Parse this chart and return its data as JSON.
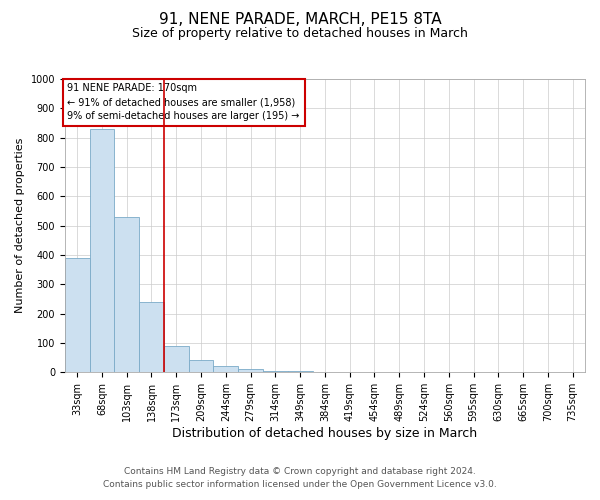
{
  "title": "91, NENE PARADE, MARCH, PE15 8TA",
  "subtitle": "Size of property relative to detached houses in March",
  "xlabel": "Distribution of detached houses by size in March",
  "ylabel": "Number of detached properties",
  "footer1": "Contains HM Land Registry data © Crown copyright and database right 2024.",
  "footer2": "Contains public sector information licensed under the Open Government Licence v3.0.",
  "annotation_line1": "91 NENE PARADE: 170sqm",
  "annotation_line2": "← 91% of detached houses are smaller (1,958)",
  "annotation_line3": "9% of semi-detached houses are larger (195) →",
  "categories": [
    "33sqm",
    "68sqm",
    "103sqm",
    "138sqm",
    "173sqm",
    "209sqm",
    "244sqm",
    "279sqm",
    "314sqm",
    "349sqm",
    "384sqm",
    "419sqm",
    "454sqm",
    "489sqm",
    "524sqm",
    "560sqm",
    "595sqm",
    "630sqm",
    "665sqm",
    "700sqm",
    "735sqm"
  ],
  "bar_values": [
    390,
    830,
    530,
    240,
    90,
    42,
    20,
    10,
    5,
    3,
    2,
    0,
    0,
    0,
    0,
    0,
    0,
    0,
    0,
    0,
    0
  ],
  "bar_color": "#cce0f0",
  "bar_edge_color": "#7aaac8",
  "red_line_color": "#cc0000",
  "grid_color": "#cccccc",
  "ylim": [
    0,
    1000
  ],
  "yticks": [
    0,
    100,
    200,
    300,
    400,
    500,
    600,
    700,
    800,
    900,
    1000
  ],
  "annotation_box_color": "#cc0000",
  "background_color": "#ffffff",
  "title_fontsize": 11,
  "subtitle_fontsize": 9,
  "xlabel_fontsize": 9,
  "ylabel_fontsize": 8,
  "tick_fontsize": 7,
  "annotation_fontsize": 7,
  "footer_fontsize": 6.5
}
